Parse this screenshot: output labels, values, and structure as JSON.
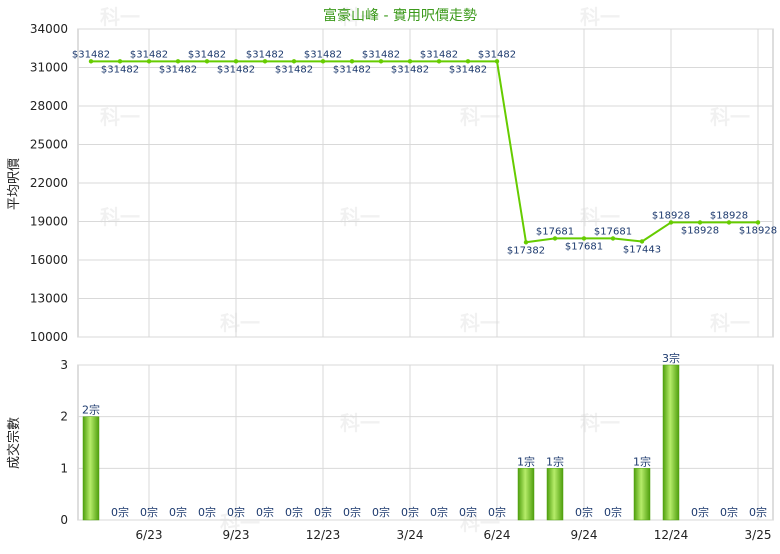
{
  "chart_data": [
    {
      "type": "line",
      "title": "富豪山峰 - 實用呎價走勢",
      "ylabel": "平均呎價",
      "ylim": [
        10000,
        34000
      ],
      "yticks": [
        10000,
        13000,
        16000,
        19000,
        22000,
        25000,
        28000,
        31000,
        34000
      ],
      "x_months": [
        "2023-04",
        "2023-05",
        "2023-06",
        "2023-07",
        "2023-08",
        "2023-09",
        "2023-10",
        "2023-11",
        "2023-12",
        "2024-01",
        "2024-02",
        "2024-03",
        "2024-04",
        "2024-05",
        "2024-06",
        "2024-07",
        "2024-08",
        "2024-09",
        "2024-10",
        "2024-11",
        "2024-12",
        "2025-01",
        "2025-02",
        "2025-03"
      ],
      "xtick_labels": [
        {
          "month": "2023-06",
          "label": "6/23"
        },
        {
          "month": "2023-09",
          "label": "9/23"
        },
        {
          "month": "2023-12",
          "label": "12/23"
        },
        {
          "month": "2024-03",
          "label": "3/24"
        },
        {
          "month": "2024-06",
          "label": "6/24"
        },
        {
          "month": "2024-09",
          "label": "9/24"
        },
        {
          "month": "2024-12",
          "label": "12/24"
        },
        {
          "month": "2025-03",
          "label": "3/25"
        }
      ],
      "series": [
        {
          "values": [
            31482,
            31482,
            31482,
            31482,
            31482,
            31482,
            31482,
            31482,
            31482,
            31482,
            31482,
            31482,
            31482,
            31482,
            31482,
            17382,
            17681,
            17681,
            17681,
            17443,
            18928,
            18928,
            18928,
            18928
          ],
          "labels": [
            "$31482",
            "$31482",
            "$31482",
            "$31482",
            "$31482",
            "$31482",
            "$31482",
            "$31482",
            "$31482",
            "$31482",
            "$31482",
            "$31482",
            "$31482",
            "$31482",
            "$31482",
            "$17382",
            "$17681",
            "$17681",
            "$17681",
            "$17443",
            "$18928",
            "$18928",
            "$18928",
            "$18928"
          ],
          "color": "#66cc00"
        }
      ],
      "grid": true
    },
    {
      "type": "bar",
      "ylabel": "成交宗數",
      "ylim": [
        0,
        3
      ],
      "yticks": [
        0,
        1,
        2,
        3
      ],
      "values": [
        2,
        0,
        0,
        0,
        0,
        0,
        0,
        0,
        0,
        0,
        0,
        0,
        0,
        0,
        0,
        1,
        1,
        0,
        0,
        1,
        3,
        0,
        0,
        0
      ],
      "labels": [
        "2宗",
        "0宗",
        "0宗",
        "0宗",
        "0宗",
        "0宗",
        "0宗",
        "0宗",
        "0宗",
        "0宗",
        "0宗",
        "0宗",
        "0宗",
        "0宗",
        "0宗",
        "1宗",
        "1宗",
        "0宗",
        "0宗",
        "1宗",
        "3宗",
        "0宗",
        "0宗",
        "0宗"
      ],
      "bar_color": "#7ccf2a",
      "grid": true
    }
  ],
  "watermark": "科一",
  "colors": {
    "title": "#3c9a1c",
    "line": "#66cc00",
    "bar": "#7ccf2a",
    "grid": "#d9d9d9"
  }
}
